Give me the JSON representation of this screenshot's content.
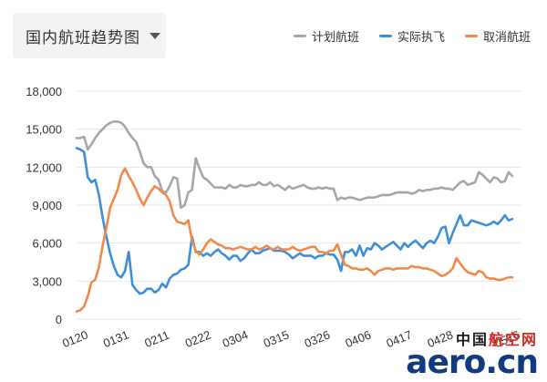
{
  "header": {
    "title": "国内航班趋势图"
  },
  "legend": [
    {
      "name": "计划航班",
      "color": "#a6a6a6"
    },
    {
      "name": "实际执飞",
      "color": "#3d8fd6"
    },
    {
      "name": "取消航班",
      "color": "#f0894a"
    }
  ],
  "watermark": {
    "top_black": "中国",
    "top_red": "航空网",
    "bottom": "aero.cn"
  },
  "chart_data": {
    "type": "line",
    "ylim": [
      0,
      18000
    ],
    "y_ticks": [
      "0",
      "3,000",
      "6,000",
      "9,000",
      "12,000",
      "15,000",
      "18,000"
    ],
    "x_tick_labels": [
      "0120",
      "0131",
      "0211",
      "0222",
      "0304",
      "0315",
      "0326",
      "0406",
      "0417",
      "0428",
      "0516"
    ],
    "x_tick_index": [
      0,
      11,
      22,
      33,
      43,
      54,
      65,
      76,
      87,
      98,
      116
    ],
    "n_points": 118,
    "series": [
      {
        "name": "计划航班",
        "color": "#a6a6a6",
        "values": [
          14300,
          14300,
          14400,
          13400,
          13800,
          14300,
          14700,
          15000,
          15300,
          15500,
          15600,
          15600,
          15500,
          15200,
          14700,
          14300,
          14000,
          13200,
          12300,
          12000,
          12000,
          11300,
          11000,
          10100,
          10000,
          10500,
          11200,
          11100,
          8800,
          9000,
          10000,
          10200,
          12700,
          11900,
          11200,
          11000,
          10700,
          10400,
          10400,
          10400,
          10300,
          10600,
          10400,
          10400,
          10600,
          10500,
          10500,
          10600,
          10600,
          10800,
          10600,
          10600,
          10800,
          10500,
          10600,
          10400,
          10200,
          10500,
          10300,
          10400,
          10500,
          10600,
          10400,
          10300,
          10300,
          10400,
          10300,
          10400,
          10300,
          10300,
          9400,
          9600,
          9500,
          9600,
          9600,
          9500,
          9400,
          9500,
          9600,
          9600,
          9600,
          9700,
          9800,
          9800,
          9800,
          9900,
          10000,
          10000,
          10000,
          10000,
          9900,
          10000,
          10200,
          10100,
          10200,
          10200,
          10300,
          10300,
          10400,
          10300,
          10300,
          10200,
          10500,
          10800,
          10900,
          10600,
          10700,
          10800,
          11600,
          11400,
          11100,
          10800,
          11200,
          11100,
          10800,
          10900,
          11600,
          11300
        ]
      },
      {
        "name": "实际执飞",
        "color": "#3d8fd6",
        "values": [
          13500,
          13400,
          13200,
          11200,
          10800,
          11000,
          9800,
          8000,
          6500,
          5200,
          4200,
          3500,
          3300,
          3800,
          5300,
          2700,
          2300,
          2000,
          2100,
          2400,
          2400,
          2100,
          2300,
          2800,
          2500,
          3200,
          3500,
          3600,
          3900,
          4000,
          4300,
          6500,
          5300,
          5300,
          5000,
          5200,
          5000,
          5300,
          5500,
          5200,
          5000,
          4700,
          5000,
          5000,
          4600,
          4800,
          5200,
          5500,
          5200,
          5200,
          5400,
          5500,
          5600,
          5400,
          5400,
          5400,
          5300,
          5100,
          4800,
          5000,
          5200,
          5000,
          5000,
          5000,
          4800,
          5000,
          5000,
          5200,
          5100,
          5100,
          4700,
          3800,
          5300,
          5300,
          5500,
          5000,
          5800,
          5000,
          5600,
          5500,
          6000,
          5800,
          5500,
          5700,
          5900,
          6100,
          5800,
          5500,
          6000,
          5700,
          6000,
          6200,
          5900,
          5600,
          6000,
          6200,
          6000,
          6500,
          7200,
          7300,
          6000,
          6800,
          7500,
          8200,
          7400,
          7400,
          7800,
          7700,
          7600,
          7500,
          7400,
          7500,
          7700,
          7500,
          7800,
          8200,
          7800,
          7900
        ]
      },
      {
        "name": "取消航班",
        "color": "#f0894a",
        "values": [
          600,
          700,
          1000,
          1800,
          2900,
          3100,
          4100,
          5800,
          7200,
          8800,
          9500,
          10200,
          11400,
          11900,
          11300,
          10800,
          10200,
          9500,
          9000,
          9600,
          10100,
          10500,
          10300,
          10000,
          9800,
          9300,
          8200,
          7700,
          7600,
          7500,
          7800,
          6200,
          5400,
          5100,
          5500,
          6000,
          6300,
          6100,
          5900,
          5800,
          5600,
          5600,
          5500,
          5600,
          5700,
          5600,
          5500,
          5500,
          5700,
          5500,
          5600,
          5800,
          5600,
          5500,
          5700,
          5500,
          5500,
          5500,
          5700,
          5500,
          5400,
          5500,
          5600,
          5700,
          5700,
          5300,
          5300,
          5200,
          5400,
          5400,
          5900,
          5100,
          4300,
          4200,
          4000,
          4000,
          3900,
          3900,
          4000,
          3800,
          3500,
          3800,
          3900,
          4000,
          4000,
          3900,
          4000,
          4000,
          4000,
          4000,
          4200,
          4100,
          4100,
          4000,
          4000,
          3900,
          3800,
          3600,
          3400,
          3500,
          3700,
          4000,
          4800,
          4400,
          4000,
          3700,
          3600,
          3500,
          3800,
          3700,
          3300,
          3200,
          3200,
          3100,
          3100,
          3200,
          3300,
          3300
        ]
      }
    ],
    "grid": "horizontal",
    "legend_position": "top-right"
  }
}
